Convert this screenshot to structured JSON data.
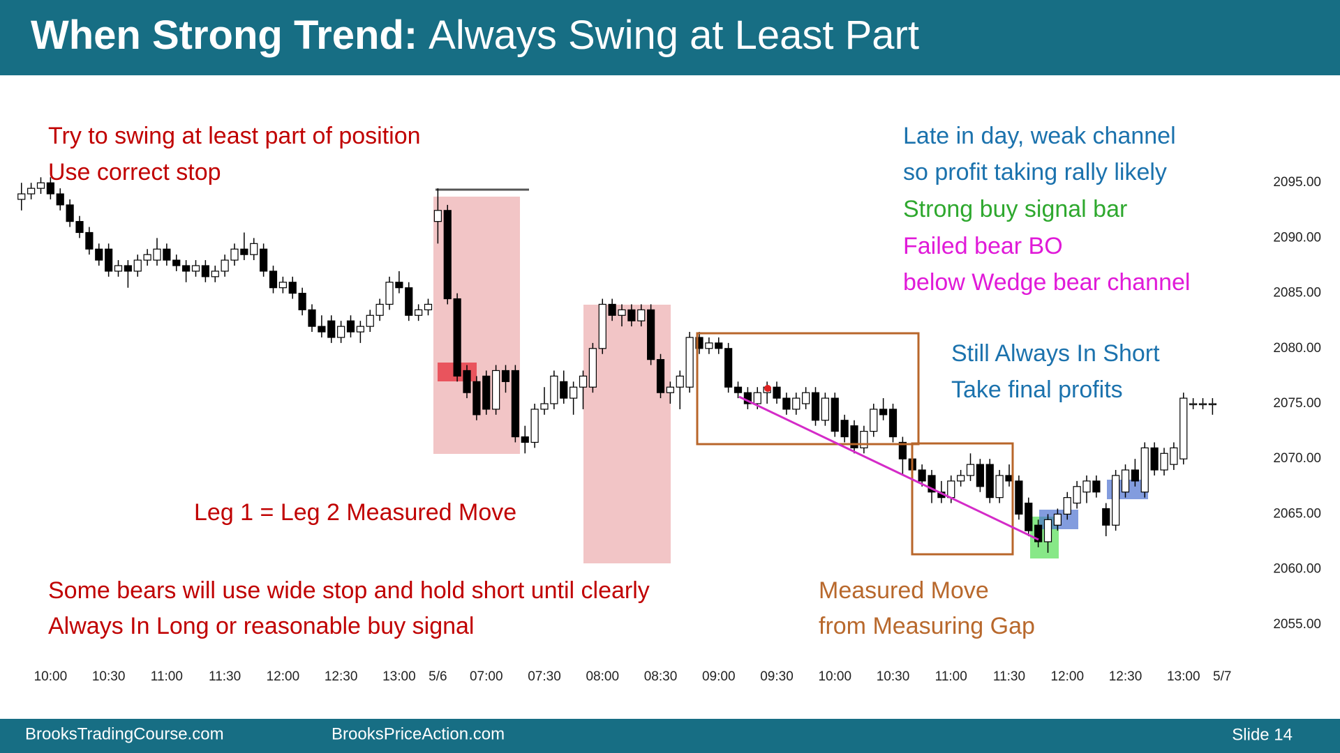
{
  "header": {
    "title_bold": "When Strong Trend:",
    "title_rest": "Always Swing at Least Part"
  },
  "chart_data": {
    "type": "candlestick",
    "annotations": [
      "Try to swing at least part of position",
      "Use correct stop",
      "Late in day, weak channel",
      "so profit taking rally likely",
      "Strong buy signal bar",
      "Failed bear BO",
      "below Wedge bear channel",
      "Still Always In Short",
      "Take final profits",
      "Leg 1 = Leg 2 Measured Move",
      "Some bears will use wide stop and hold short until clearly",
      "Always In Long or reasonable buy signal",
      "Measured Move",
      "from Measuring Gap"
    ],
    "up_color": "#ffffff",
    "down_color": "#000000",
    "xlim": [
      -2,
      126
    ],
    "xticks": [
      {
        "value": 3,
        "label": "10:00"
      },
      {
        "value": 9,
        "label": "10:30"
      },
      {
        "value": 15,
        "label": "11:00"
      },
      {
        "value": 21,
        "label": "11:30"
      },
      {
        "value": 27,
        "label": "12:00"
      },
      {
        "value": 33,
        "label": "12:30"
      },
      {
        "value": 39,
        "label": "13:00"
      },
      {
        "value": 43,
        "label": "5/6"
      },
      {
        "value": 48,
        "label": "07:00"
      },
      {
        "value": 54,
        "label": "07:30"
      },
      {
        "value": 60,
        "label": "08:00"
      },
      {
        "value": 66,
        "label": "08:30"
      },
      {
        "value": 72,
        "label": "09:00"
      },
      {
        "value": 78,
        "label": "09:30"
      },
      {
        "value": 84,
        "label": "10:00"
      },
      {
        "value": 90,
        "label": "10:30"
      },
      {
        "value": 96,
        "label": "11:00"
      },
      {
        "value": 102,
        "label": "11:30"
      },
      {
        "value": 108,
        "label": "12:00"
      },
      {
        "value": 114,
        "label": "12:30"
      },
      {
        "value": 120,
        "label": "13:00"
      },
      {
        "value": 124,
        "label": "5/7"
      }
    ],
    "ylim": [
      2050,
      2100
    ],
    "yticks": [
      {
        "value": 2055,
        "label": "2055.00"
      },
      {
        "value": 2060,
        "label": "2060.00"
      },
      {
        "value": 2065,
        "label": "2065.00"
      },
      {
        "value": 2070,
        "label": "2070.00"
      },
      {
        "value": 2075,
        "label": "2075.00"
      },
      {
        "value": 2080,
        "label": "2080.00"
      },
      {
        "value": 2085,
        "label": "2085.00"
      },
      {
        "value": 2090,
        "label": "2090.00"
      },
      {
        "value": 2095,
        "label": "2095.00"
      }
    ],
    "open": [
      2093.5,
      2094,
      2094.5,
      2095,
      2094,
      2093,
      2091.5,
      2090.5,
      2089,
      2089,
      2087,
      2087.5,
      2087,
      2088,
      2088,
      2089,
      2088,
      2087.5,
      2087,
      2087.5,
      2086.5,
      2087,
      2088,
      2089,
      2088.5,
      2089,
      2087,
      2085.5,
      2086,
      2085,
      2083.5,
      2082,
      2082.5,
      2081,
      2082.5,
      2081.5,
      2082,
      2083,
      2084,
      2086,
      2085.5,
      2083,
      2083.5,
      2091.5,
      2092.5,
      2084.5,
      2078,
      2077,
      2077.5,
      2074.5,
      2078,
      2078,
      2072,
      2071.5,
      2074.5,
      2075,
      2077,
      2075.5,
      2076.5,
      2076.5,
      2080,
      2084,
      2083,
      2083.5,
      2082.5,
      2083.5,
      2079,
      2076,
      2076.5,
      2076.5,
      2081,
      2080,
      2080.5,
      2080,
      2076.5,
      2076,
      2075,
      2076,
      2076.5,
      2075.5,
      2074.5,
      2075,
      2076,
      2073.5,
      2075.5,
      2073.5,
      2073,
      2071,
      2072.5,
      2074.5,
      2074.5,
      2071.5,
      2070,
      2069,
      2068.5,
      2067,
      2066.5,
      2068,
      2068.5,
      2069.5,
      2069.5,
      2066.5,
      2068.5,
      2068,
      2066,
      2064,
      2062.5,
      2064,
      2065,
      2066,
      2067,
      2068,
      2065.5,
      2064,
      2067,
      2069,
      2067,
      2071,
      2069,
      2069.5,
      2070,
      2075,
      2075,
      2075
    ],
    "high": [
      2095,
      2095,
      2095.5,
      2095.5,
      2094.5,
      2093.5,
      2092,
      2091,
      2089.5,
      2089.5,
      2088,
      2088,
      2088.5,
      2089,
      2090,
      2089.5,
      2088.5,
      2088,
      2088,
      2088,
      2087.5,
      2088.5,
      2089.5,
      2090.5,
      2090,
      2089.5,
      2087.5,
      2086.5,
      2086.5,
      2085.5,
      2084,
      2083,
      2083,
      2082.5,
      2083,
      2082.5,
      2083.5,
      2084.5,
      2086.5,
      2087,
      2086,
      2084,
      2084.5,
      2094.5,
      2093,
      2085,
      2078.5,
      2077.5,
      2078,
      2078.5,
      2078.5,
      2078.5,
      2073,
      2075,
      2076.5,
      2078,
      2078,
      2077,
      2078,
      2080.5,
      2084.5,
      2084.5,
      2084,
      2084,
      2084,
      2084,
      2079.5,
      2077,
      2078,
      2081.5,
      2081.5,
      2081,
      2081,
      2080.5,
      2077,
      2076.5,
      2076.5,
      2077,
      2077,
      2076,
      2076,
      2076.5,
      2076.5,
      2076,
      2076,
      2074,
      2073.5,
      2073,
      2075,
      2075.5,
      2075,
      2072,
      2070.5,
      2069.5,
      2069,
      2068,
      2068.5,
      2069,
      2070.5,
      2070,
      2070,
      2069,
      2069.5,
      2068.5,
      2066.5,
      2064.5,
      2065,
      2065.5,
      2067,
      2068,
      2068.5,
      2068.5,
      2066,
      2069,
      2069.5,
      2070,
      2071.5,
      2071.5,
      2071,
      2071.5,
      2076,
      2075.5,
      2075.5,
      2075.5
    ],
    "low": [
      2092.5,
      2093.5,
      2094,
      2093.5,
      2092.5,
      2091,
      2090,
      2088.5,
      2087.5,
      2086.5,
      2086.5,
      2085.5,
      2086.5,
      2087.5,
      2087.5,
      2087.5,
      2087,
      2086,
      2086.5,
      2086,
      2086,
      2086.5,
      2087.5,
      2088,
      2088,
      2086.5,
      2085,
      2085,
      2084.5,
      2083,
      2081.5,
      2081,
      2080.5,
      2080.5,
      2081,
      2080.5,
      2081.5,
      2082.5,
      2083.5,
      2085,
      2082.5,
      2082.5,
      2083,
      2089.5,
      2084,
      2077,
      2075.5,
      2073.5,
      2074,
      2074,
      2076,
      2071.5,
      2070.5,
      2071,
      2074,
      2074.5,
      2075,
      2074,
      2074.5,
      2076,
      2079.5,
      2082.5,
      2082,
      2082,
      2082,
      2078.5,
      2075.5,
      2075,
      2074.5,
      2076,
      2079.5,
      2079.5,
      2079.5,
      2076,
      2075.5,
      2074.5,
      2074.5,
      2075,
      2075,
      2074,
      2074,
      2074.5,
      2073,
      2073,
      2072,
      2071.5,
      2070.5,
      2070.5,
      2072,
      2073.5,
      2071.5,
      2068.5,
      2068,
      2067.5,
      2066,
      2066,
      2066,
      2067.5,
      2068,
      2067,
      2066,
      2066,
      2067.5,
      2064.5,
      2063,
      2062,
      2061.5,
      2063.5,
      2064.5,
      2065.5,
      2066,
      2066.5,
      2063,
      2063.5,
      2066.5,
      2067.5,
      2066.5,
      2068.5,
      2068.5,
      2069,
      2069.5,
      2074.5,
      2074.5,
      2074
    ],
    "close": [
      2094,
      2094.5,
      2095,
      2094,
      2093,
      2091.5,
      2090.5,
      2089,
      2088,
      2087,
      2087.5,
      2087,
      2088,
      2088.5,
      2089,
      2088,
      2087.5,
      2087,
      2087.5,
      2086.5,
      2087,
      2088,
      2089,
      2088.5,
      2089.5,
      2087,
      2085.5,
      2086,
      2085,
      2083.5,
      2082,
      2081.5,
      2081,
      2082,
      2081.5,
      2082,
      2083,
      2084,
      2086,
      2085.5,
      2083,
      2083.5,
      2084,
      2092.5,
      2084.5,
      2077.5,
      2076,
      2074,
      2074.5,
      2078,
      2077,
      2072,
      2071.5,
      2074.5,
      2075,
      2077.5,
      2075.5,
      2076.5,
      2077.5,
      2080,
      2084,
      2083,
      2083.5,
      2082.5,
      2083.5,
      2079,
      2076,
      2076.5,
      2077.5,
      2081,
      2080,
      2080.5,
      2080,
      2076.5,
      2076,
      2075,
      2076,
      2076.5,
      2075.5,
      2074.5,
      2075.5,
      2076,
      2073.5,
      2075.5,
      2072.5,
      2072,
      2071,
      2072.5,
      2074.5,
      2074,
      2072,
      2070,
      2069,
      2068,
      2067,
      2066.5,
      2068,
      2068.5,
      2069.5,
      2067.5,
      2066.5,
      2068.5,
      2068,
      2065,
      2063.5,
      2062.5,
      2064.5,
      2065,
      2066.5,
      2067.5,
      2068,
      2067,
      2064,
      2068.5,
      2069,
      2068,
      2071,
      2069,
      2070.5,
      2071,
      2075.5,
      2075,
      2075,
      2075
    ]
  },
  "footer": {
    "left": "BrooksTradingCourse.com",
    "center": "BrooksPriceAction.com",
    "slide": "Slide 14"
  }
}
